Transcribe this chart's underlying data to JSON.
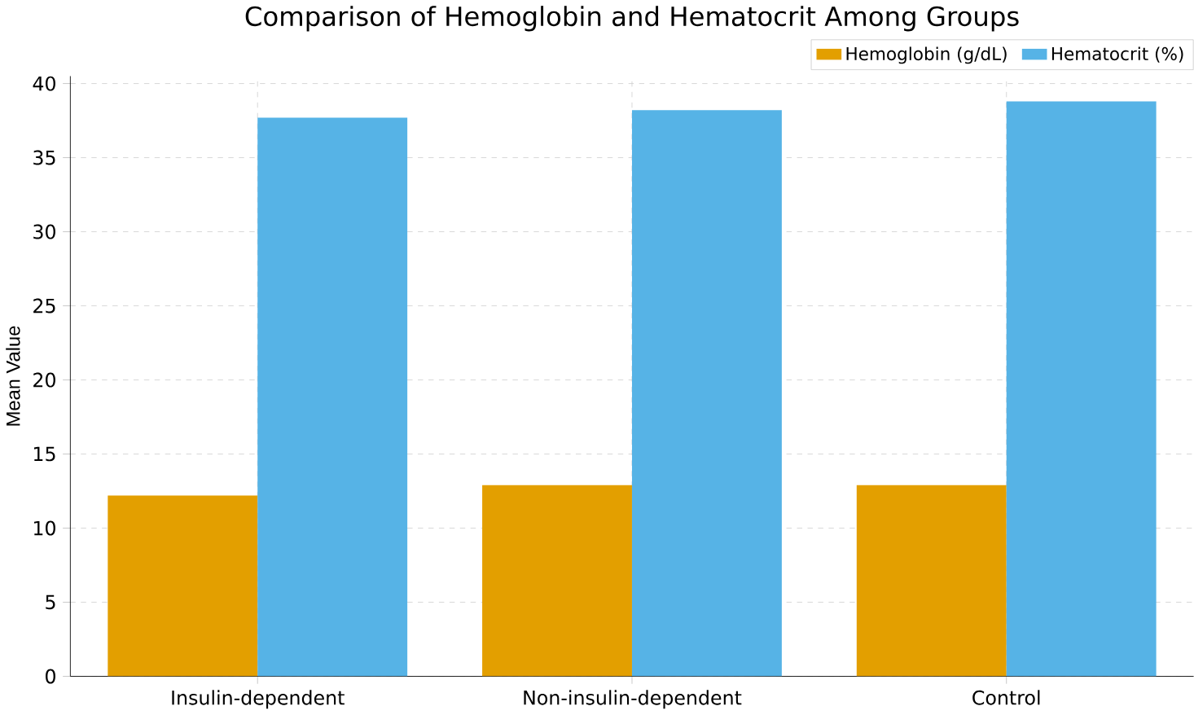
{
  "chart_data": {
    "type": "bar",
    "title": "Comparison of Hemoglobin and Hematocrit Among Groups",
    "ylabel": "Mean Value",
    "categories": [
      "Insulin-dependent",
      "Non-insulin-dependent",
      "Control"
    ],
    "series": [
      {
        "name": "Hemoglobin (g/dL)",
        "color": "#e39f00",
        "values": [
          12.2,
          12.9,
          12.9
        ]
      },
      {
        "name": "Hematocrit (%)",
        "color": "#56b3e6",
        "values": [
          37.7,
          38.2,
          38.8
        ]
      }
    ],
    "ylim": [
      0,
      40.5
    ],
    "yticks": [
      0,
      5,
      10,
      15,
      20,
      25,
      30,
      35,
      40
    ],
    "grid": true,
    "legend": "top right"
  }
}
